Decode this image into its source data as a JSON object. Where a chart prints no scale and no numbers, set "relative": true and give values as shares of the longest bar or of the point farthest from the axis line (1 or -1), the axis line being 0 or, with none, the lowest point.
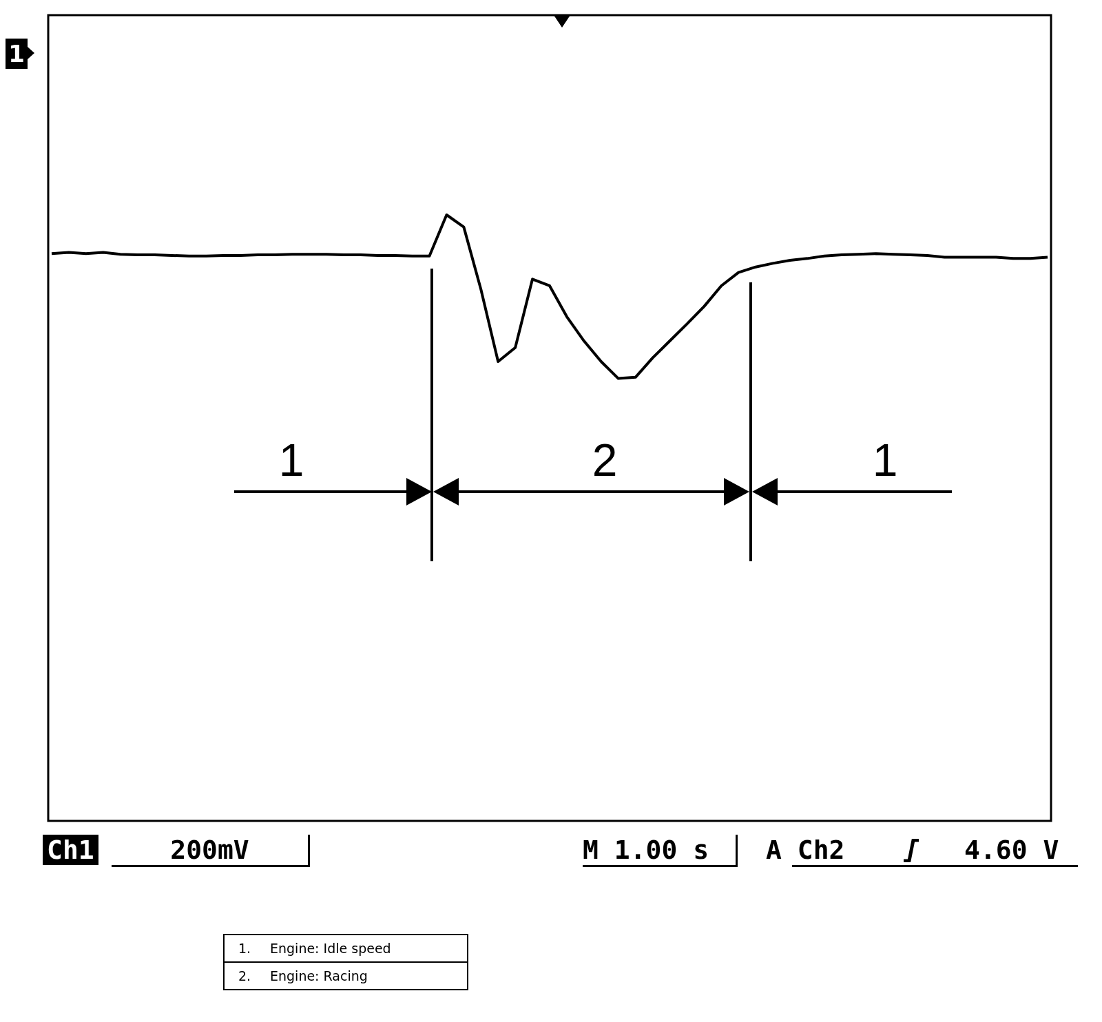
{
  "chart_data": {
    "type": "line",
    "relative": true,
    "categories": [
      null,
      null,
      null,
      null,
      null,
      null,
      null,
      null,
      null,
      null,
      null,
      null,
      null,
      null,
      null,
      null,
      null,
      null,
      null,
      null,
      null,
      null,
      null,
      null,
      null,
      null,
      null,
      null,
      null,
      null,
      null,
      null,
      null,
      null,
      null,
      null,
      null,
      null,
      null,
      null,
      null,
      null,
      null,
      null,
      null,
      null,
      null,
      null,
      null,
      null,
      null,
      null,
      null,
      null,
      null,
      null,
      null,
      null,
      null
    ],
    "series": [
      {
        "color": "#000000",
        "values": [
          0.936,
          0.938,
          0.936,
          0.938,
          0.935,
          0.934,
          0.934,
          0.933,
          0.932,
          0.932,
          0.933,
          0.933,
          0.934,
          0.934,
          0.935,
          0.935,
          0.935,
          0.934,
          0.934,
          0.933,
          0.933,
          0.932,
          0.932,
          1,
          0.98,
          0.877,
          0.758,
          0.781,
          0.894,
          0.883,
          0.832,
          0.792,
          0.758,
          0.73,
          0.732,
          0.764,
          0.792,
          0.82,
          0.849,
          0.883,
          0.905,
          0.914,
          0.92,
          0.925,
          0.928,
          0.932,
          0.934,
          0.935,
          0.936,
          0.935,
          0.934,
          0.933,
          0.93,
          0.93,
          0.93,
          0.93,
          0.928,
          0.928,
          0.93
        ]
      }
    ],
    "annotations": [
      "1",
      "1",
      "2",
      "1",
      "Ch1",
      "200mV",
      "M 1.00 s",
      "A Ch2",
      "4.60 V",
      "1.",
      "Engine: Idle speed",
      "2.",
      "Engine: Racing"
    ]
  }
}
